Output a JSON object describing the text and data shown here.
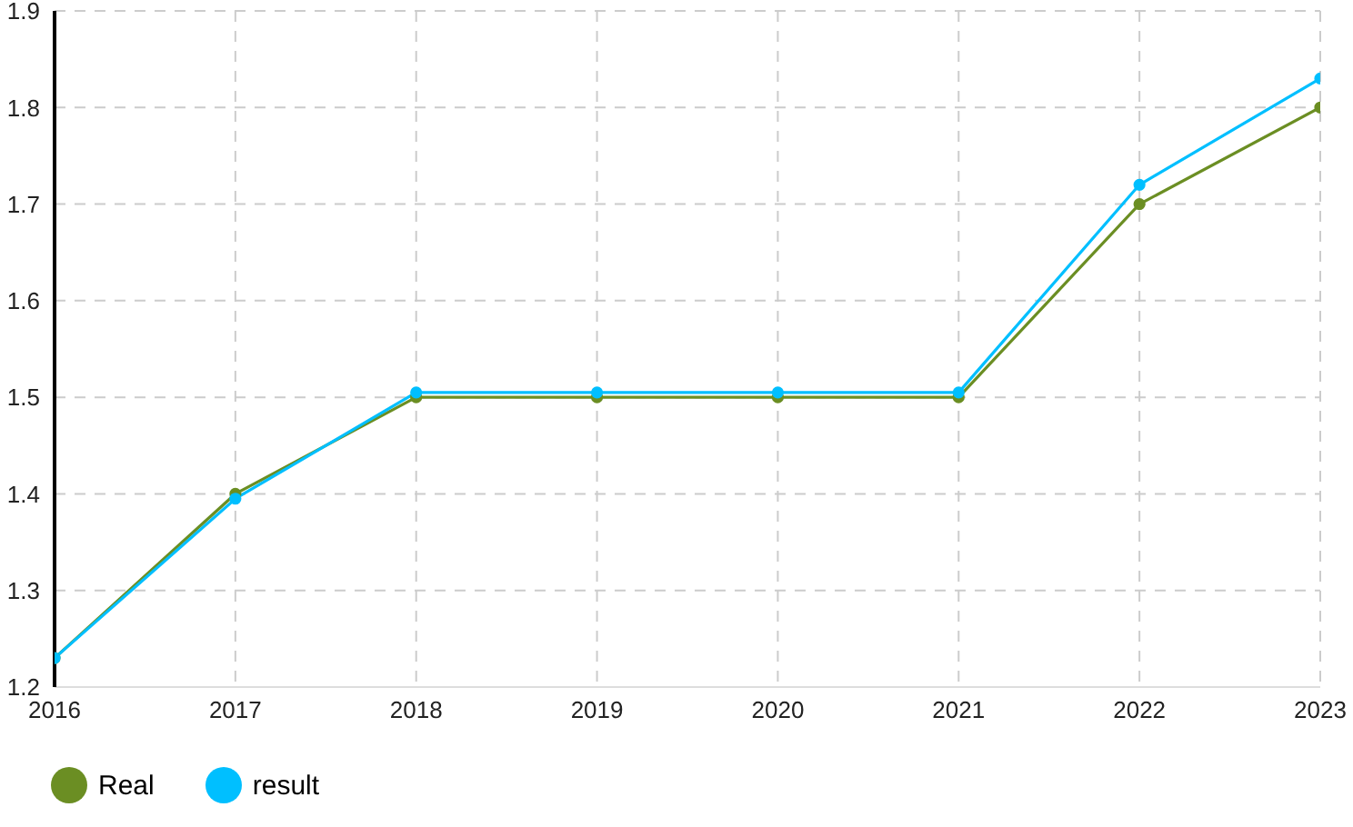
{
  "chart_data": {
    "type": "line",
    "x": [
      2016,
      2017,
      2018,
      2019,
      2020,
      2021,
      2022,
      2023
    ],
    "series": [
      {
        "name": "Real",
        "color": "#6b8e23",
        "values": [
          1.23,
          1.4,
          1.5,
          1.5,
          1.5,
          1.5,
          1.7,
          1.8
        ]
      },
      {
        "name": "result",
        "color": "#00bfff",
        "values": [
          1.23,
          1.395,
          1.505,
          1.505,
          1.505,
          1.505,
          1.72,
          1.83
        ]
      }
    ],
    "xlim": [
      2016,
      2023
    ],
    "xticks": [
      2016,
      2017,
      2018,
      2019,
      2020,
      2021,
      2022,
      2023
    ],
    "ylim": [
      1.2,
      1.9
    ],
    "yticks": [
      1.2,
      1.3,
      1.4,
      1.5,
      1.6,
      1.7,
      1.8,
      1.9
    ],
    "grid": true,
    "legend": "bottom left",
    "marker": "circle",
    "line_style": "solid"
  }
}
